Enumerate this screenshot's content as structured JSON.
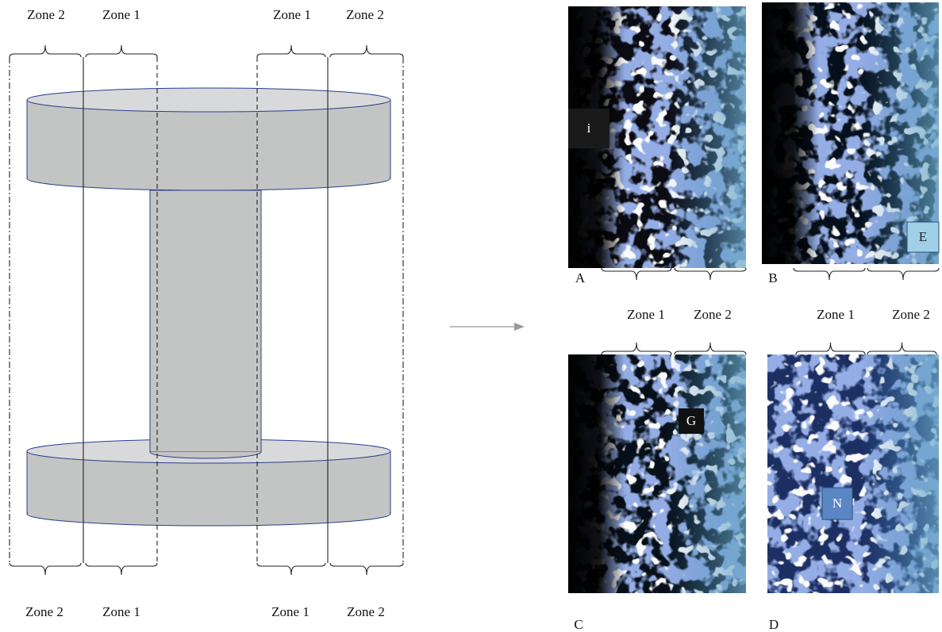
{
  "diagram": {
    "top_labels": [
      "Zone 2",
      "Zone 1",
      "Zone 1",
      "Zone 2"
    ],
    "bottom_labels": [
      "Zone 2",
      "Zone 1",
      "Zone 1",
      "Zone 2"
    ]
  },
  "panels": [
    {
      "letter": "A",
      "tag": "i"
    },
    {
      "letter": "B",
      "tag": "E"
    },
    {
      "letter": "C",
      "tag": "G",
      "zone_labels": [
        "Zone 1",
        "Zone 2"
      ]
    },
    {
      "letter": "D",
      "tag": "N",
      "zone_labels": [
        "Zone 1",
        "Zone 2"
      ]
    }
  ]
}
